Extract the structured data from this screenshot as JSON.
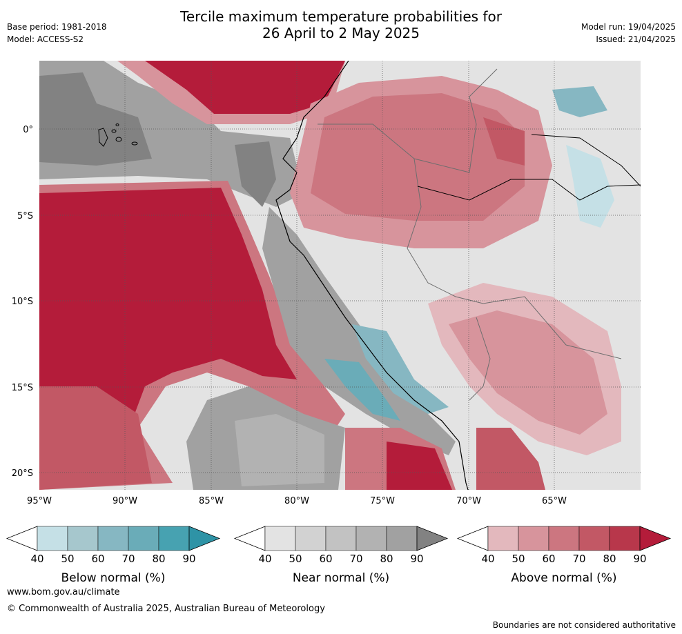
{
  "title_line1": "Tercile maximum temperature probabilities for",
  "title_line2": "26 April to 2 May 2025",
  "meta_left": {
    "base_period": "Base period: 1981-2018",
    "model": "Model: ACCESS-S2"
  },
  "meta_right": {
    "model_run": "Model run: 19/04/2025",
    "issued": "Issued: 21/04/2025"
  },
  "axes": {
    "lat_labels": [
      "0°",
      "5°S",
      "10°S",
      "15°S",
      "20°S"
    ],
    "lon_labels": [
      "95°W",
      "90°W",
      "85°W",
      "80°W",
      "75°W",
      "70°W",
      "65°W"
    ]
  },
  "colorbars": [
    {
      "label": "Below normal (%)",
      "ticks": [
        "40",
        "50",
        "60",
        "70",
        "80",
        "90"
      ],
      "colors": [
        "#ffffff",
        "#c5e0e6",
        "#a6c7cd",
        "#86b7c2",
        "#6aacb8",
        "#47a2b1",
        "#2e93a6"
      ]
    },
    {
      "label": "Near normal (%)",
      "ticks": [
        "40",
        "50",
        "60",
        "70",
        "80",
        "90"
      ],
      "colors": [
        "#ffffff",
        "#e3e3e3",
        "#d2d2d2",
        "#c2c2c2",
        "#b2b2b2",
        "#a1a1a1",
        "#828282"
      ]
    },
    {
      "label": "Above normal (%)",
      "ticks": [
        "40",
        "50",
        "60",
        "70",
        "80",
        "90"
      ],
      "colors": [
        "#ffffff",
        "#e3b8bd",
        "#d7949c",
        "#cc7680",
        "#c25865",
        "#b8374b",
        "#b41c3a"
      ]
    }
  ],
  "footer": {
    "url": "www.bom.gov.au/climate",
    "copyright": "© Commonwealth of Australia 2025, Australian Bureau of Meteorology",
    "note": "Boundaries are not considered authoritative"
  }
}
